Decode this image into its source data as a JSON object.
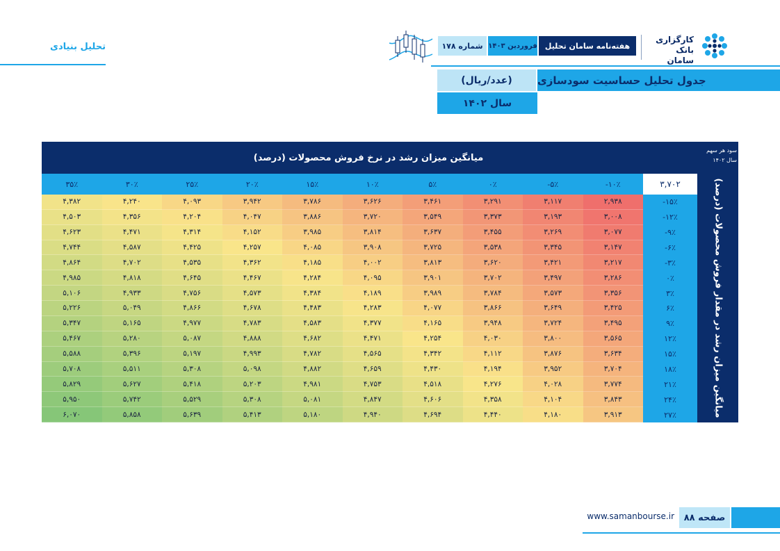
{
  "brand": {
    "line1": "کارگزاری",
    "line2": "بانک سامان"
  },
  "header": {
    "title": "هفته‌نامه سامان تحلیل",
    "month": "فروردین ۱۴۰۳",
    "issue": "شماره ۱۷۸",
    "section": "تحلیل بنیادی"
  },
  "table_title": {
    "main": "جدول تحلیل حساسیت سودسازی",
    "unit": "(عدد/ریال)",
    "year": "سال ۱۴۰۲"
  },
  "sensitivity_table": {
    "heading": "میانگین میزان رشد در نرخ فروش محصولات (درصد)",
    "eps_label_line1": "سود هر سهم",
    "eps_label_line2": "سال ۱۴۰۲",
    "side_axis_label": "میانگین میزان رشد در مقدار فروش محصولات (درصد)",
    "base_value": "۳,۷۰۲",
    "columns": [
      "-۱۰٪",
      "-۵٪",
      "۰٪",
      "۵٪",
      "۱۰٪",
      "۱۵٪",
      "۲۰٪",
      "۲۵٪",
      "۳۰٪",
      "۳۵٪"
    ],
    "rows": [
      {
        "label": "-۱۵٪",
        "values": [
          "۲,۹۳۸",
          "۳,۱۱۷",
          "۳,۲۹۱",
          "۳,۴۶۱",
          "۳,۶۲۶",
          "۳,۷۸۶",
          "۳,۹۴۲",
          "۴,۰۹۳",
          "۴,۲۴۰",
          "۴,۳۸۲"
        ]
      },
      {
        "label": "-۱۲٪",
        "values": [
          "۳,۰۰۸",
          "۳,۱۹۳",
          "۳,۳۷۳",
          "۳,۵۴۹",
          "۳,۷۲۰",
          "۳,۸۸۶",
          "۴,۰۴۷",
          "۴,۲۰۴",
          "۴,۳۵۶",
          "۴,۵۰۳"
        ]
      },
      {
        "label": "-۹٪",
        "values": [
          "۳,۰۷۷",
          "۳,۲۶۹",
          "۳,۴۵۵",
          "۳,۶۳۷",
          "۳,۸۱۴",
          "۳,۹۸۵",
          "۴,۱۵۲",
          "۴,۳۱۴",
          "۴,۴۷۱",
          "۴,۶۲۳"
        ]
      },
      {
        "label": "-۶٪",
        "values": [
          "۳,۱۴۷",
          "۳,۳۴۵",
          "۳,۵۳۸",
          "۳,۷۲۵",
          "۳,۹۰۸",
          "۴,۰۸۵",
          "۴,۲۵۷",
          "۴,۴۲۵",
          "۴,۵۸۷",
          "۴,۷۴۴"
        ]
      },
      {
        "label": "-۳٪",
        "values": [
          "۳,۲۱۷",
          "۳,۴۲۱",
          "۳,۶۲۰",
          "۳,۸۱۳",
          "۴,۰۰۲",
          "۴,۱۸۵",
          "۴,۳۶۲",
          "۴,۵۳۵",
          "۴,۷۰۲",
          "۴,۸۶۴"
        ]
      },
      {
        "label": "۰٪",
        "values": [
          "۳,۲۸۶",
          "۳,۴۹۷",
          "۳,۷۰۲",
          "۳,۹۰۱",
          "۴,۰۹۵",
          "۴,۲۸۴",
          "۴,۴۶۷",
          "۴,۶۴۵",
          "۴,۸۱۸",
          "۴,۹۸۵"
        ]
      },
      {
        "label": "۳٪",
        "values": [
          "۳,۳۵۶",
          "۳,۵۷۳",
          "۳,۷۸۴",
          "۳,۹۸۹",
          "۴,۱۸۹",
          "۴,۳۸۴",
          "۴,۵۷۳",
          "۴,۷۵۶",
          "۴,۹۳۳",
          "۵,۱۰۶"
        ]
      },
      {
        "label": "۶٪",
        "values": [
          "۳,۴۲۵",
          "۳,۶۴۹",
          "۳,۸۶۶",
          "۴,۰۷۷",
          "۴,۲۸۳",
          "۴,۴۸۳",
          "۴,۶۷۸",
          "۴,۸۶۶",
          "۵,۰۴۹",
          "۵,۲۲۶"
        ]
      },
      {
        "label": "۹٪",
        "values": [
          "۳,۴۹۵",
          "۳,۷۲۴",
          "۳,۹۴۸",
          "۴,۱۶۵",
          "۴,۳۷۷",
          "۴,۵۸۳",
          "۴,۷۸۳",
          "۴,۹۷۷",
          "۵,۱۶۵",
          "۵,۳۴۷"
        ]
      },
      {
        "label": "۱۲٪",
        "values": [
          "۳,۵۶۵",
          "۳,۸۰۰",
          "۴,۰۳۰",
          "۴,۲۵۴",
          "۴,۴۷۱",
          "۴,۶۸۲",
          "۴,۸۸۸",
          "۵,۰۸۷",
          "۵,۲۸۰",
          "۵,۴۶۷"
        ]
      },
      {
        "label": "۱۵٪",
        "values": [
          "۳,۶۳۴",
          "۳,۸۷۶",
          "۴,۱۱۲",
          "۴,۳۴۲",
          "۴,۵۶۵",
          "۴,۷۸۲",
          "۴,۹۹۳",
          "۵,۱۹۷",
          "۵,۳۹۶",
          "۵,۵۸۸"
        ]
      },
      {
        "label": "۱۸٪",
        "values": [
          "۳,۷۰۴",
          "۳,۹۵۲",
          "۴,۱۹۴",
          "۴,۴۳۰",
          "۴,۶۵۹",
          "۴,۸۸۲",
          "۵,۰۹۸",
          "۵,۳۰۸",
          "۵,۵۱۱",
          "۵,۷۰۸"
        ]
      },
      {
        "label": "۲۱٪",
        "values": [
          "۳,۷۷۴",
          "۴,۰۲۸",
          "۴,۲۷۶",
          "۴,۵۱۸",
          "۴,۷۵۳",
          "۴,۹۸۱",
          "۵,۲۰۳",
          "۵,۴۱۸",
          "۵,۶۲۷",
          "۵,۸۲۹"
        ]
      },
      {
        "label": "۲۴٪",
        "values": [
          "۳,۸۴۳",
          "۴,۱۰۴",
          "۴,۳۵۸",
          "۴,۶۰۶",
          "۴,۸۴۷",
          "۵,۰۸۱",
          "۵,۳۰۸",
          "۵,۵۲۹",
          "۵,۷۴۲",
          "۵,۹۵۰"
        ]
      },
      {
        "label": "۲۷٪",
        "values": [
          "۳,۹۱۳",
          "۴,۱۸۰",
          "۴,۴۴۰",
          "۴,۶۹۴",
          "۴,۹۴۰",
          "۵,۱۸۰",
          "۵,۴۱۳",
          "۵,۶۳۹",
          "۵,۸۵۸",
          "۶,۰۷۰"
        ]
      }
    ],
    "heat_colors": {
      "low": "#ef6f6c",
      "mid": "#f9e58a",
      "high": "#86c678"
    }
  },
  "footer": {
    "page": "صفحه ۸۸",
    "url": "www.samanbourse.ir"
  }
}
